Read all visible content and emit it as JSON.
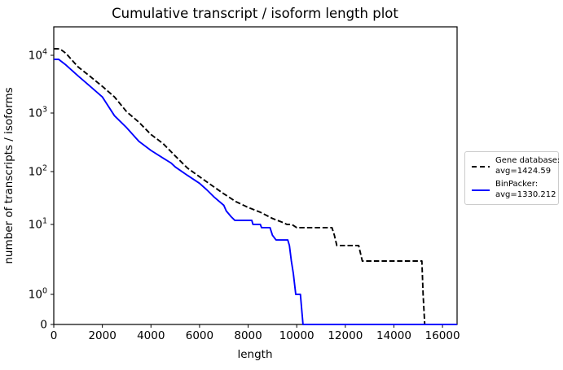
{
  "figure": {
    "title": "Cumulative transcript / isoform length plot",
    "xlabel": "length",
    "ylabel": "number of transcripts / isoforms"
  },
  "legend": {
    "items": [
      {
        "line1": "Gene database:",
        "line2": "avg=1424.59",
        "color": "#000000",
        "style": "dashed"
      },
      {
        "line1": "BinPacker:",
        "line2": "avg=1330.212",
        "color": "#0000ff",
        "style": "solid"
      }
    ]
  },
  "chart_data": {
    "type": "line",
    "title": "Cumulative transcript / isoform length plot",
    "xlabel": "length",
    "ylabel": "number of transcripts / isoforms",
    "xlim": [
      0,
      16600
    ],
    "yscale": "symlog",
    "grid": false,
    "legend_position": "outside-right",
    "x_ticks": [
      0,
      2000,
      4000,
      6000,
      8000,
      10000,
      12000,
      14000,
      16000
    ],
    "y_ticks": [
      "10^4",
      "10^3",
      "10^2",
      "10^1",
      "10^0",
      "0"
    ],
    "series": [
      {
        "name": "Gene database: avg=1424.59",
        "avg": 1424.59,
        "color": "#000000",
        "dash": "dashed",
        "points": [
          [
            0,
            13000
          ],
          [
            250,
            12900
          ],
          [
            500,
            10800
          ],
          [
            1000,
            6300
          ],
          [
            1500,
            4300
          ],
          [
            2000,
            2900
          ],
          [
            2500,
            1900
          ],
          [
            3000,
            1050
          ],
          [
            3500,
            700
          ],
          [
            4000,
            430
          ],
          [
            4500,
            300
          ],
          [
            5000,
            185
          ],
          [
            5500,
            115
          ],
          [
            6000,
            80
          ],
          [
            6500,
            55
          ],
          [
            7000,
            38
          ],
          [
            7500,
            27
          ],
          [
            8000,
            21
          ],
          [
            8500,
            17
          ],
          [
            9000,
            13
          ],
          [
            9400,
            11
          ],
          [
            9600,
            10
          ],
          [
            9800,
            10
          ],
          [
            10000,
            9
          ],
          [
            11450,
            9
          ],
          [
            11550,
            7
          ],
          [
            11650,
            5
          ],
          [
            12550,
            5
          ],
          [
            12700,
            3
          ],
          [
            15150,
            3
          ],
          [
            15200,
            1
          ],
          [
            15270,
            0
          ],
          [
            16600,
            0
          ]
        ]
      },
      {
        "name": "BinPacker: avg=1330.212",
        "avg": 1330.212,
        "color": "#0000ff",
        "dash": "solid",
        "points": [
          [
            0,
            8500
          ],
          [
            200,
            8500
          ],
          [
            500,
            6800
          ],
          [
            1000,
            4400
          ],
          [
            1500,
            2900
          ],
          [
            2000,
            1900
          ],
          [
            2500,
            900
          ],
          [
            3000,
            560
          ],
          [
            3500,
            330
          ],
          [
            4000,
            230
          ],
          [
            4500,
            170
          ],
          [
            4830,
            140
          ],
          [
            5000,
            120
          ],
          [
            5500,
            85
          ],
          [
            6000,
            60
          ],
          [
            6300,
            45
          ],
          [
            6600,
            33
          ],
          [
            7000,
            23
          ],
          [
            7100,
            18
          ],
          [
            7300,
            14
          ],
          [
            7450,
            12
          ],
          [
            8150,
            12
          ],
          [
            8200,
            10
          ],
          [
            8500,
            10
          ],
          [
            8550,
            9
          ],
          [
            8900,
            9
          ],
          [
            9000,
            7
          ],
          [
            9150,
            6
          ],
          [
            9630,
            6
          ],
          [
            9700,
            5
          ],
          [
            9780,
            3
          ],
          [
            9860,
            2
          ],
          [
            9960,
            1
          ],
          [
            10150,
            1
          ],
          [
            10260,
            0
          ],
          [
            16600,
            0
          ]
        ]
      }
    ]
  }
}
